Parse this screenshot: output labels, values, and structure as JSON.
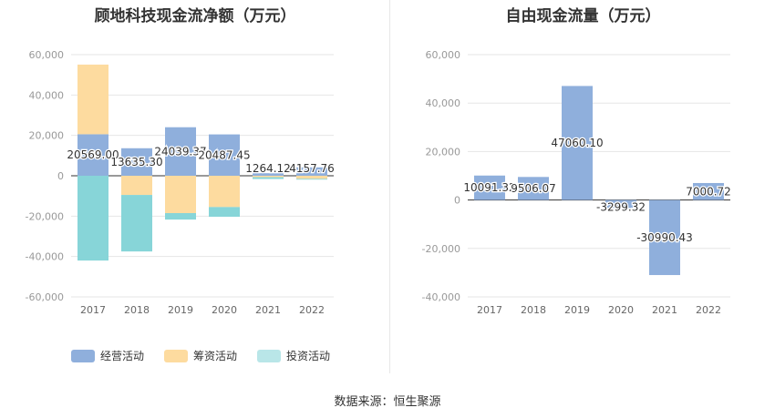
{
  "source_note": "数据来源：恒生聚源",
  "chart_data": [
    {
      "type": "bar",
      "stacked": true,
      "title": "顾地科技现金流净额（万元）",
      "categories": [
        "2017",
        "2018",
        "2019",
        "2020",
        "2021",
        "2022"
      ],
      "ylim": [
        -60000,
        60000
      ],
      "yticks": [
        60000,
        40000,
        20000,
        0,
        -20000,
        -40000,
        -60000
      ],
      "ytick_labels": [
        "60,000",
        "40,000",
        "20,000",
        "0",
        "-20,000",
        "-40,000",
        "-60,000"
      ],
      "grid": true,
      "legend_position": "bottom-left",
      "series": [
        {
          "name": "经营活动",
          "color": "#8fafdc",
          "values": [
            20569.0,
            13635.3,
            24039.37,
            20487.45,
            1264.12,
            4157.76
          ],
          "data_labels": [
            "20569.00",
            "13635.30",
            "24039.37",
            "20487.45",
            "1264.12",
            "4157.76"
          ]
        },
        {
          "name": "筹资活动",
          "color": "#fddb9f",
          "values": [
            34500,
            -9500,
            -18500,
            -15500,
            -700,
            -1500
          ]
        },
        {
          "name": "投资活动",
          "color": "#87d5d8",
          "values": [
            -42000,
            -28000,
            -3200,
            -4800,
            -900,
            -400
          ]
        }
      ]
    },
    {
      "type": "bar",
      "title": "自由现金流量（万元）",
      "categories": [
        "2017",
        "2018",
        "2019",
        "2020",
        "2021",
        "2022"
      ],
      "ylim": [
        -40000,
        60000
      ],
      "yticks": [
        60000,
        40000,
        20000,
        0,
        -20000,
        -40000
      ],
      "ytick_labels": [
        "60,000",
        "40,000",
        "20,000",
        "0",
        "-20,000",
        "-40,000"
      ],
      "grid": true,
      "color": "#8fafdc",
      "values": [
        10091.32,
        9506.07,
        47060.1,
        -3299.32,
        -30990.43,
        7000.72
      ],
      "data_labels": [
        "10091.32",
        "9506.07",
        "47060.10",
        "-3299.32",
        "-30990.43",
        "7000.72"
      ]
    }
  ]
}
